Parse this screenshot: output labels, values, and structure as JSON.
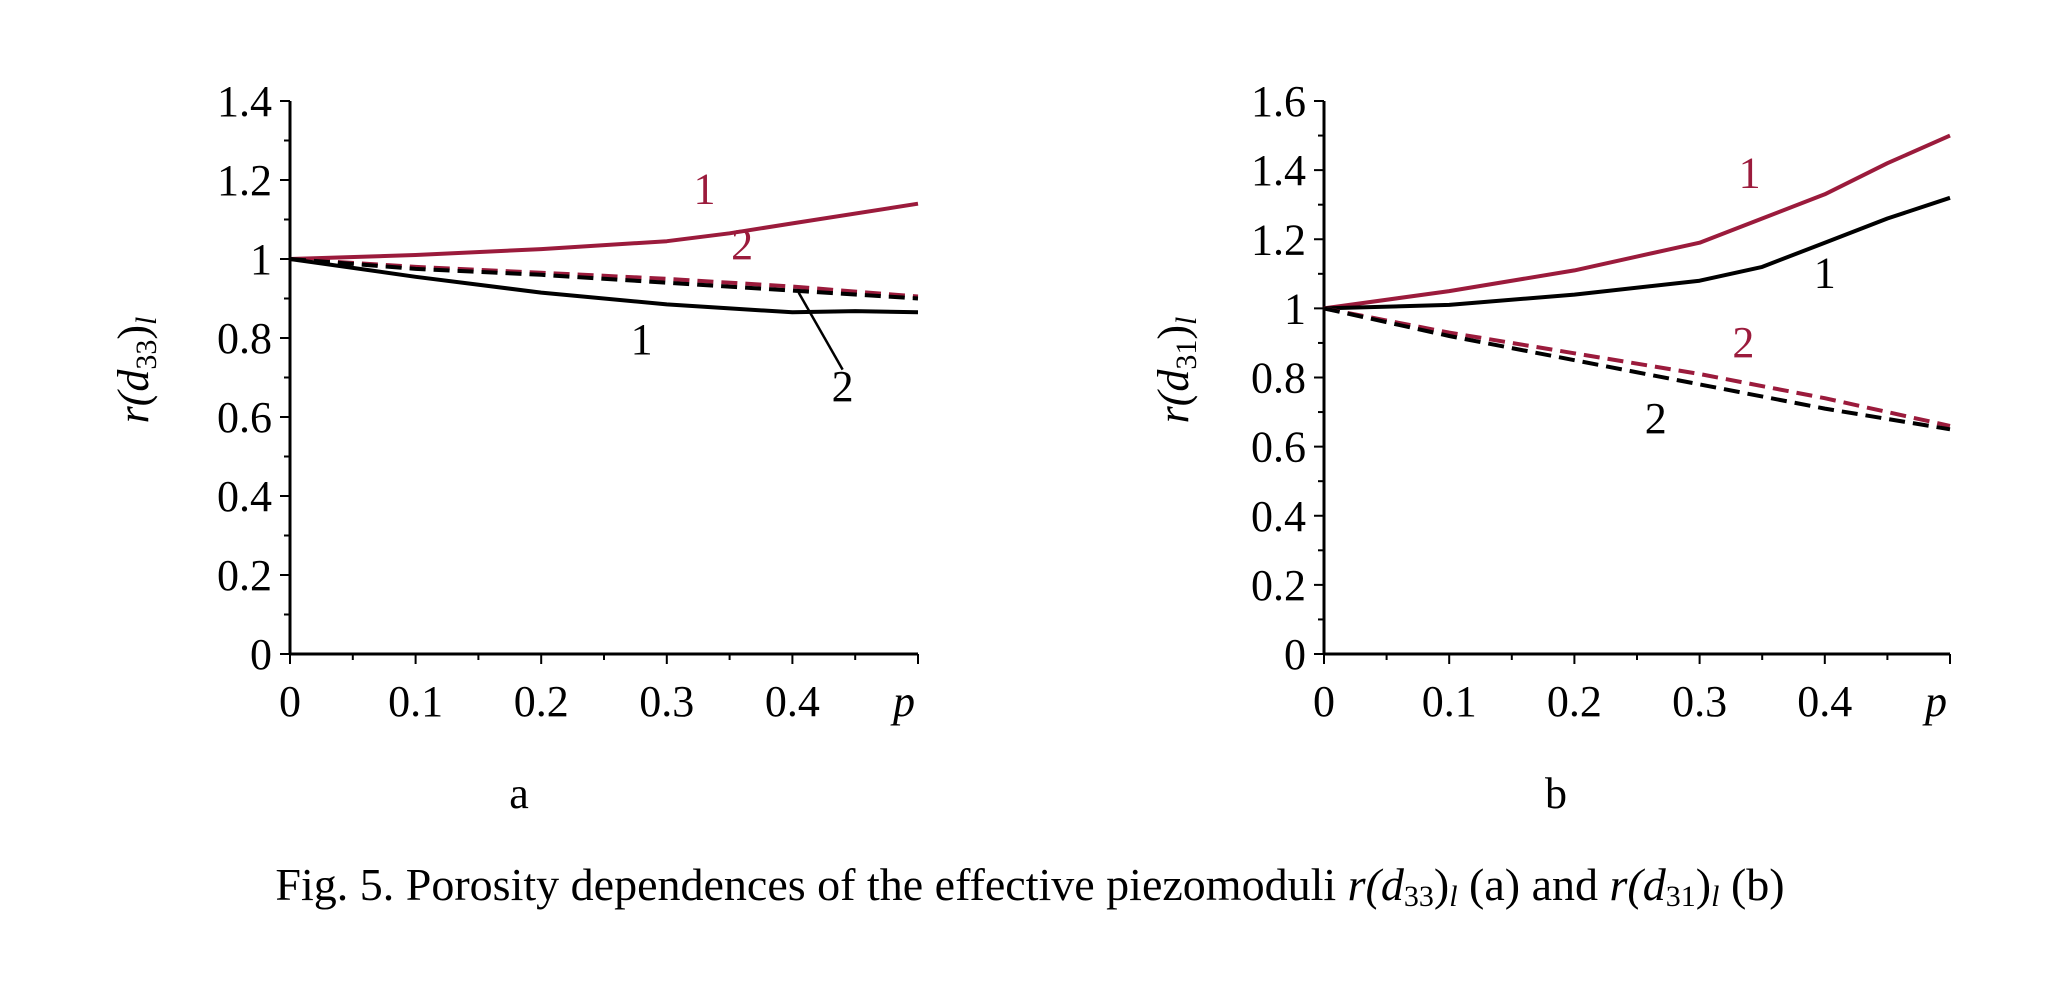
{
  "chart_data": [
    {
      "type": "line",
      "panel_label": "a",
      "ylabel_base": "r(d",
      "ylabel_sub": "33",
      "ylabel_close": ")",
      "ylabel_index": "l",
      "xlabel": "p",
      "x_ticks": [
        "0",
        "0.1",
        "0.2",
        "0.3",
        "0.4"
      ],
      "y_ticks": [
        "0",
        "0.2",
        "0.4",
        "0.6",
        "0.8",
        "1",
        "1.2",
        "1.4"
      ],
      "xlim": [
        0,
        0.5
      ],
      "ylim": [
        0,
        1.4
      ],
      "grid": false,
      "colors": {
        "red": "#9b1b3c",
        "black": "#000000"
      },
      "series": [
        {
          "label": "1",
          "color": "red",
          "dash": false,
          "x": [
            0,
            0.1,
            0.2,
            0.3,
            0.35,
            0.4,
            0.5
          ],
          "y": [
            1.0,
            1.01,
            1.025,
            1.045,
            1.065,
            1.09,
            1.14
          ]
        },
        {
          "label": "2",
          "color": "red",
          "dash": true,
          "x": [
            0,
            0.1,
            0.2,
            0.3,
            0.4,
            0.5
          ],
          "y": [
            1.0,
            0.98,
            0.965,
            0.95,
            0.93,
            0.905
          ]
        },
        {
          "label": "2",
          "color": "black",
          "dash": true,
          "x": [
            0,
            0.1,
            0.2,
            0.3,
            0.4,
            0.5
          ],
          "y": [
            1.0,
            0.975,
            0.96,
            0.94,
            0.92,
            0.9
          ]
        },
        {
          "label": "1",
          "color": "black",
          "dash": false,
          "x": [
            0,
            0.1,
            0.2,
            0.3,
            0.35,
            0.4,
            0.45,
            0.5
          ],
          "y": [
            1.0,
            0.955,
            0.915,
            0.885,
            0.875,
            0.865,
            0.868,
            0.865
          ]
        }
      ],
      "annotations": [
        {
          "text": "1",
          "color": "red",
          "x": 0.33,
          "y": 1.14
        },
        {
          "text": "2",
          "color": "red",
          "x": 0.36,
          "y": 1.0
        },
        {
          "text": "1",
          "color": "black",
          "x": 0.28,
          "y": 0.76
        },
        {
          "text": "2",
          "color": "black",
          "x": 0.44,
          "y": 0.64
        }
      ],
      "leader_line": {
        "x1": 0.405,
        "y1": 0.915,
        "x2": 0.44,
        "y2": 0.72
      }
    },
    {
      "type": "line",
      "panel_label": "b",
      "ylabel_base": "r(d",
      "ylabel_sub": "31",
      "ylabel_close": ")",
      "ylabel_index": "l",
      "xlabel": "p",
      "x_ticks": [
        "0",
        "0.1",
        "0.2",
        "0.3",
        "0.4"
      ],
      "y_ticks": [
        "0",
        "0.2",
        "0.4",
        "0.6",
        "0.8",
        "1",
        "1.2",
        "1.4",
        "1.6"
      ],
      "xlim": [
        0,
        0.5
      ],
      "ylim": [
        0,
        1.6
      ],
      "grid": false,
      "colors": {
        "red": "#9b1b3c",
        "black": "#000000"
      },
      "series": [
        {
          "label": "1",
          "color": "red",
          "dash": false,
          "x": [
            0,
            0.1,
            0.2,
            0.3,
            0.35,
            0.4,
            0.45,
            0.5
          ],
          "y": [
            1.0,
            1.05,
            1.11,
            1.19,
            1.26,
            1.33,
            1.42,
            1.5
          ]
        },
        {
          "label": "1",
          "color": "black",
          "dash": false,
          "x": [
            0,
            0.1,
            0.2,
            0.3,
            0.35,
            0.4,
            0.45,
            0.5
          ],
          "y": [
            1.0,
            1.01,
            1.04,
            1.08,
            1.12,
            1.19,
            1.26,
            1.32
          ]
        },
        {
          "label": "2",
          "color": "red",
          "dash": true,
          "x": [
            0,
            0.1,
            0.2,
            0.3,
            0.4,
            0.5
          ],
          "y": [
            1.0,
            0.93,
            0.87,
            0.81,
            0.74,
            0.66
          ]
        },
        {
          "label": "2",
          "color": "black",
          "dash": true,
          "x": [
            0,
            0.1,
            0.2,
            0.3,
            0.4,
            0.5
          ],
          "y": [
            1.0,
            0.92,
            0.85,
            0.78,
            0.71,
            0.65
          ]
        }
      ],
      "annotations": [
        {
          "text": "1",
          "color": "red",
          "x": 0.34,
          "y": 1.35
        },
        {
          "text": "1",
          "color": "black",
          "x": 0.4,
          "y": 1.06
        },
        {
          "text": "2",
          "color": "red",
          "x": 0.335,
          "y": 0.86
        },
        {
          "text": "2",
          "color": "black",
          "x": 0.265,
          "y": 0.64
        }
      ]
    }
  ],
  "caption": {
    "prefix": "Fig. 5. Porosity dependences of the effective piezomoduli",
    "term1_base": "r(d",
    "term1_sub": "33",
    "term1_close": ")",
    "term1_index": "l",
    "label_a": "(a)",
    "joiner": "and",
    "term2_base": "r(d",
    "term2_sub": "31",
    "term2_close": ")",
    "term2_index": "l",
    "label_b": "(b)"
  }
}
